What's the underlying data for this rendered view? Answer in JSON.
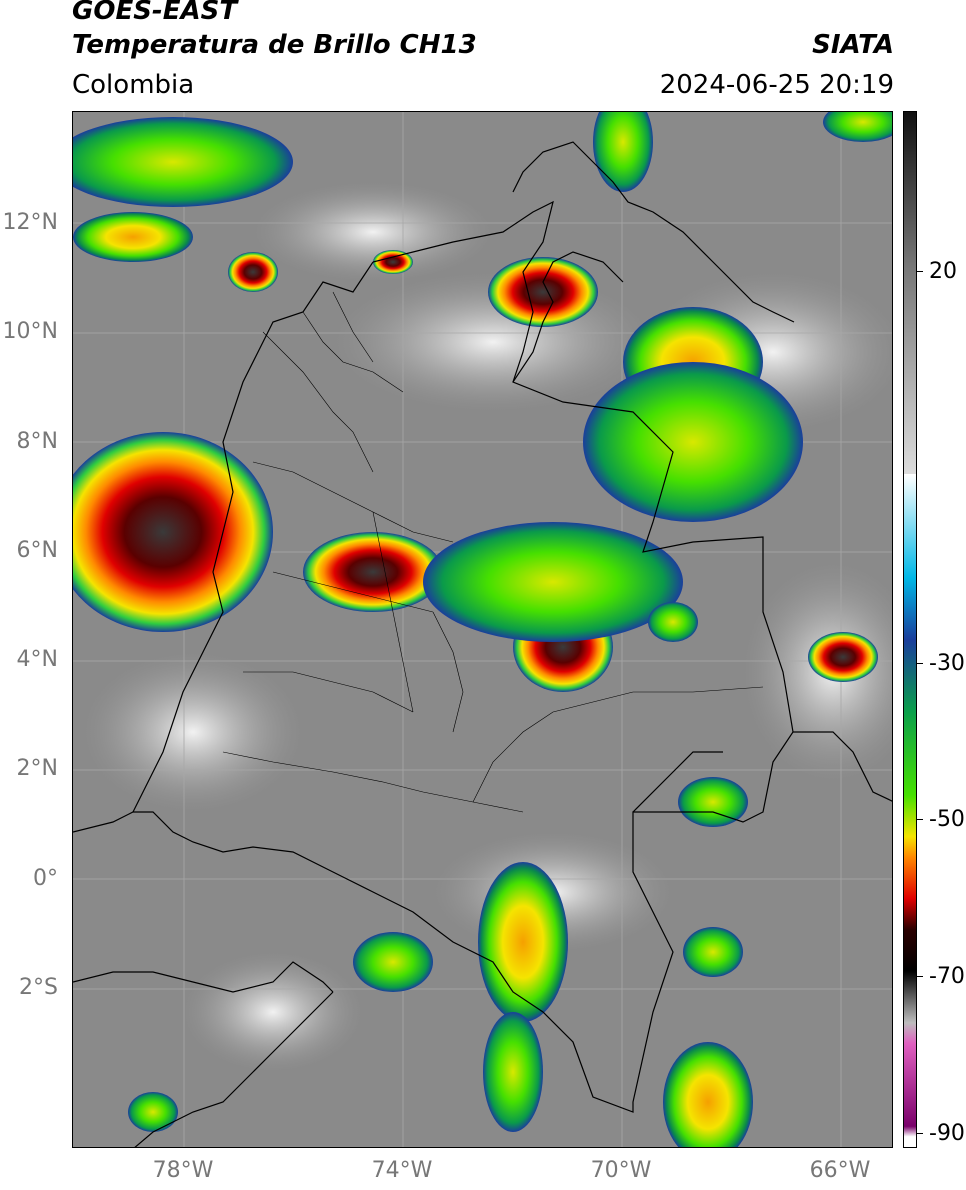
{
  "header": {
    "title_line1": "GOES-EAST",
    "title_line2": "Temperatura de Brillo CH13",
    "org": "SIATA",
    "region": "Colombia",
    "timestamp": "2024-06-25 20:19"
  },
  "map": {
    "lat_labels": [
      "12°N",
      "10°N",
      "8°N",
      "6°N",
      "4°N",
      "2°N",
      "0°",
      "2°S"
    ],
    "lon_labels": [
      "78°W",
      "74°W",
      "70°W",
      "66°W"
    ],
    "background_color": "#8a8a8a",
    "border_color": "#000000"
  },
  "colorbar": {
    "labels": [
      "20",
      "-30",
      "-50",
      "-70",
      "-90"
    ],
    "stops": [
      "#ffffff",
      "#00b7e6",
      "#1a3e9c",
      "#0aa04a",
      "#46e000",
      "#f5e400",
      "#ff8800",
      "#e00000",
      "#2a0000",
      "#000000",
      "#bdbdbd",
      "#e060c0",
      "#7a006a"
    ]
  }
}
